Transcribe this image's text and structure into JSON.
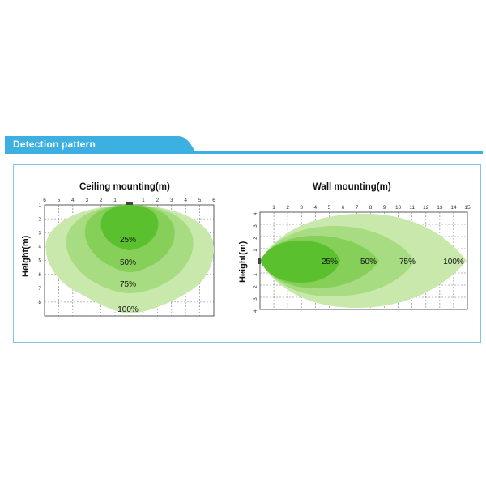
{
  "section": {
    "title": "Detection pattern",
    "accent_color": "#3cb0e0"
  },
  "charts": {
    "ceiling": {
      "title": "Ceiling mounting(m)",
      "ylabel": "Height(m)",
      "x_ticks": [
        "6",
        "5",
        "4",
        "3",
        "2",
        "1",
        "",
        "1",
        "2",
        "3",
        "4",
        "5",
        "6"
      ],
      "y_ticks": [
        "1",
        "2",
        "3",
        "4",
        "5",
        "6",
        "7",
        "8"
      ],
      "zones": [
        {
          "label": "25%",
          "color": "#5bc02e"
        },
        {
          "label": "50%",
          "color": "#86cf58"
        },
        {
          "label": "75%",
          "color": "#a7dc82"
        },
        {
          "label": "100%",
          "color": "#c8e9ab"
        }
      ]
    },
    "wall": {
      "title": "Wall mounting(m)",
      "ylabel": "Height(m)",
      "x_ticks": [
        "1",
        "2",
        "3",
        "4",
        "5",
        "6",
        "7",
        "8",
        "9",
        "10",
        "11",
        "12",
        "13",
        "14",
        "15"
      ],
      "y_ticks": [
        "4",
        "3",
        "2",
        "1",
        "",
        "1",
        "2",
        "3",
        "4"
      ],
      "zones": [
        {
          "label": "25%",
          "color": "#5bc02e"
        },
        {
          "label": "50%",
          "color": "#86cf58"
        },
        {
          "label": "75%",
          "color": "#a7dc82"
        },
        {
          "label": "100%",
          "color": "#c8e9ab"
        }
      ]
    }
  }
}
